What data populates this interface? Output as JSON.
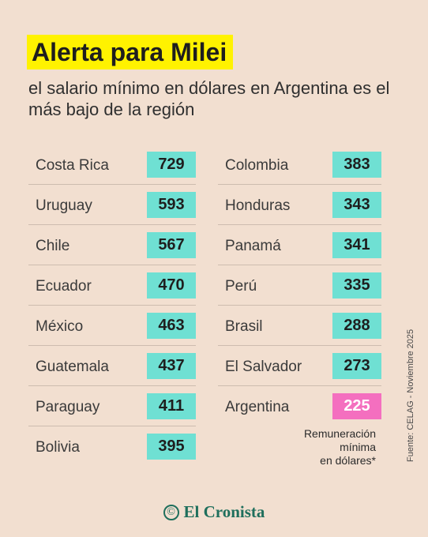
{
  "header": {
    "title": "Alerta para Milei",
    "subtitle": "el salario mínimo en dólares en Argentina es el más bajo de la región"
  },
  "left_column": [
    {
      "country": "Costa Rica",
      "value": "729"
    },
    {
      "country": "Uruguay",
      "value": "593"
    },
    {
      "country": "Chile",
      "value": "567"
    },
    {
      "country": "Ecuador",
      "value": "470"
    },
    {
      "country": "México",
      "value": "463"
    },
    {
      "country": "Guatemala",
      "value": "437"
    },
    {
      "country": "Paraguay",
      "value": "411"
    },
    {
      "country": "Bolivia",
      "value": "395"
    }
  ],
  "right_column": [
    {
      "country": "Colombia",
      "value": "383"
    },
    {
      "country": "Honduras",
      "value": "343"
    },
    {
      "country": "Panamá",
      "value": "341"
    },
    {
      "country": "Perú",
      "value": "335"
    },
    {
      "country": "Brasil",
      "value": "288"
    },
    {
      "country": "El Salvador",
      "value": "273"
    },
    {
      "country": "Argentina",
      "value": "225"
    }
  ],
  "note": {
    "line1": "Remuneración",
    "line2": "mínima",
    "line3": "en dólares*"
  },
  "source": "Fuente: CELAG - Noviembre 2025",
  "logo": {
    "mark": "©",
    "text": "El Cronista"
  },
  "colors": {
    "background": "#f2dfd0",
    "title_highlight": "#fff200",
    "badge": "#6fe0d3",
    "badge_highlight": "#f46fbf",
    "brand": "#1f6f5c"
  }
}
